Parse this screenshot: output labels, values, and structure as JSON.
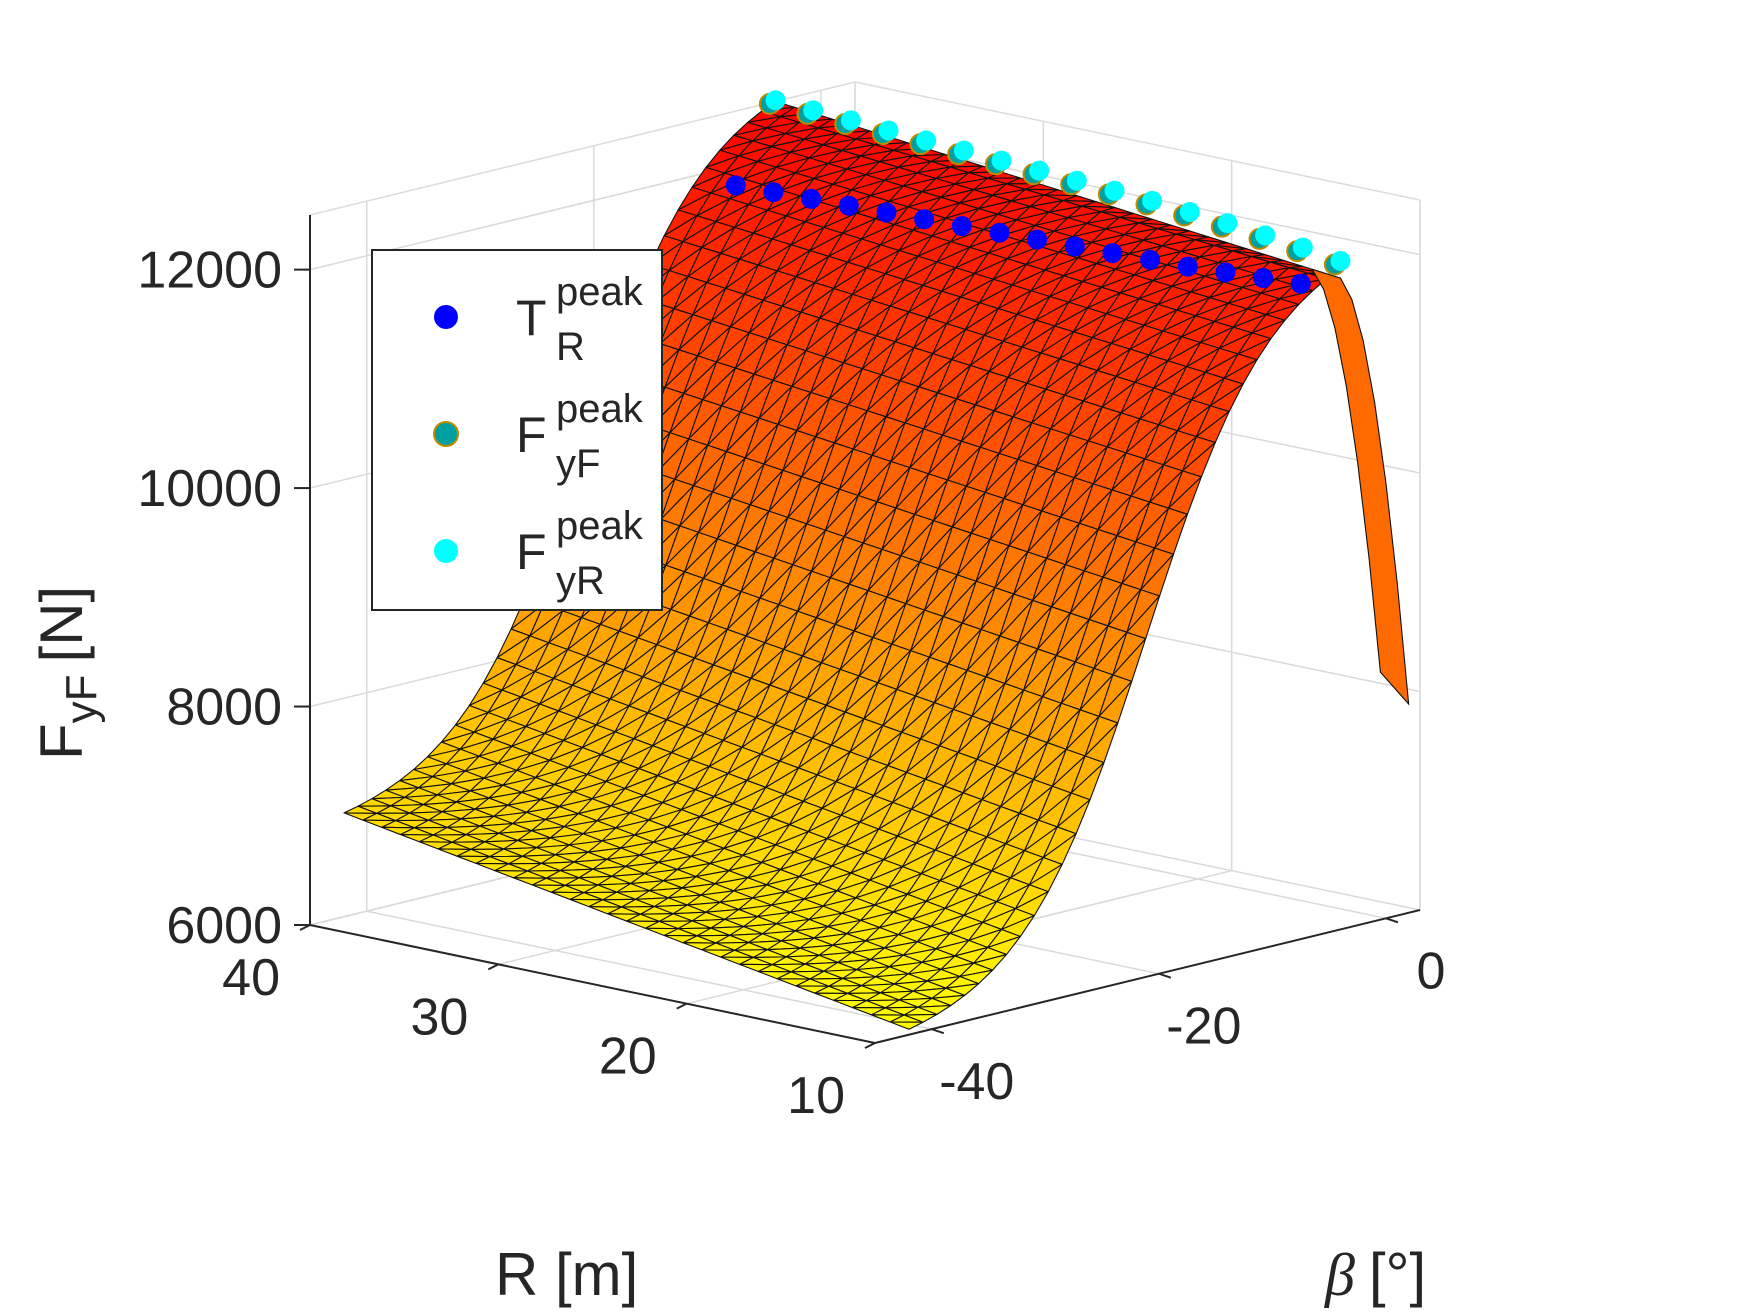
{
  "chart_data": {
    "type": "surface3d",
    "title": "",
    "zlabel": {
      "main": "F",
      "sub": "yF",
      "unit": "[N]"
    },
    "xlabel": "R [m]",
    "ylabel": {
      "symbol": "β",
      "unit": "[°]"
    },
    "zlim": [
      6000,
      12500
    ],
    "xlim": [
      10,
      40
    ],
    "ylim": [
      -45,
      3
    ],
    "ztick_labels": [
      "6000",
      "8000",
      "10000",
      "12000"
    ],
    "rtick_labels": [
      "10",
      "20",
      "30",
      "40"
    ],
    "btick_labels": [
      "-40",
      "-20",
      "0"
    ],
    "zticks": [
      6000,
      8000,
      10000,
      12000
    ],
    "rticks": [
      10,
      20,
      30,
      40
    ],
    "bticks": [
      -40,
      -20,
      0
    ],
    "grid": true,
    "colormap": "autumn (yellow low → red high)",
    "edge_color": "#000000",
    "legend": {
      "position": "top-left",
      "entries": [
        {
          "main": "T",
          "sup": "peak",
          "sub": "R",
          "color": "#0000ff"
        },
        {
          "main": "F",
          "sup": "peak",
          "sub": "yF",
          "color": "#00a0a0"
        },
        {
          "main": "F",
          "sup": "peak",
          "sub": "yR",
          "color": "#00ffff"
        }
      ]
    },
    "surface_model": {
      "description": "lateral force rises from ~6.9 kN at R=40,beta=-42 to a peak plateau ~12.1 kN near beta=-6..-4, then drops steeply toward beta=0",
      "R_grid": [
        10,
        40,
        31
      ],
      "beta_grid": [
        -42,
        -4,
        32
      ]
    },
    "series": [
      {
        "name": "T_R peak",
        "beta": -7.5,
        "values_R": [
          10,
          12,
          14,
          16,
          18,
          20,
          22,
          24,
          26,
          28,
          30,
          32,
          34,
          36,
          38,
          40
        ],
        "values_F": [
          12000,
          11980,
          11960,
          11940,
          11930,
          11920,
          11910,
          11900,
          11890,
          11880,
          11870,
          11860,
          11850,
          11840,
          11830,
          11820
        ]
      },
      {
        "name": "F_yF peak",
        "beta": -4.5,
        "values_R": [
          10,
          12,
          14,
          16,
          18,
          20,
          22,
          24,
          26,
          28,
          30,
          32,
          34,
          36,
          38,
          40
        ],
        "values_F": [
          12100,
          12150,
          12190,
          12230,
          12260,
          12290,
          12310,
          12330,
          12350,
          12370,
          12390,
          12410,
          12430,
          12450,
          12470,
          12490
        ]
      },
      {
        "name": "F_yR peak",
        "beta": -4.0,
        "values_R": [
          10,
          12,
          14,
          16,
          18,
          20,
          22,
          24,
          26,
          28,
          30,
          32,
          34,
          36,
          38,
          40
        ],
        "values_F": [
          12120,
          12170,
          12210,
          12250,
          12280,
          12310,
          12330,
          12350,
          12370,
          12390,
          12410,
          12430,
          12450,
          12470,
          12490,
          12510
        ]
      }
    ]
  }
}
